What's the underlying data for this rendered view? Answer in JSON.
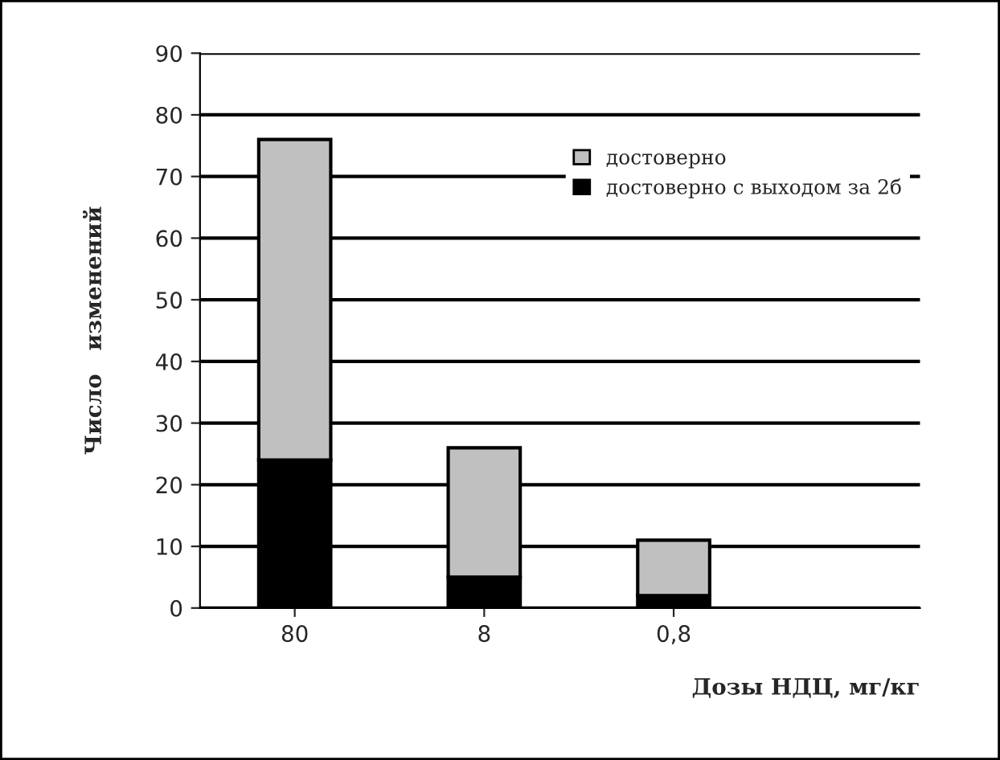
{
  "chart_data": {
    "type": "bar",
    "stacked": true,
    "xlabel": "Дозы НДЦ, мг/кг",
    "ylabel": "Число   изменений",
    "categories": [
      "80",
      "8",
      "0,8"
    ],
    "series": [
      {
        "name": "достоверно с выходом за 2б",
        "color": "#000000",
        "values": [
          24,
          5,
          2
        ]
      },
      {
        "name": "достоверно",
        "color": "#c0c0c0",
        "values": [
          52,
          21,
          9
        ]
      }
    ],
    "ylim": [
      0,
      90
    ],
    "yticks": [
      0,
      10,
      20,
      30,
      40,
      50,
      60,
      70,
      80,
      90
    ],
    "grid": "y",
    "legend": "top right"
  }
}
